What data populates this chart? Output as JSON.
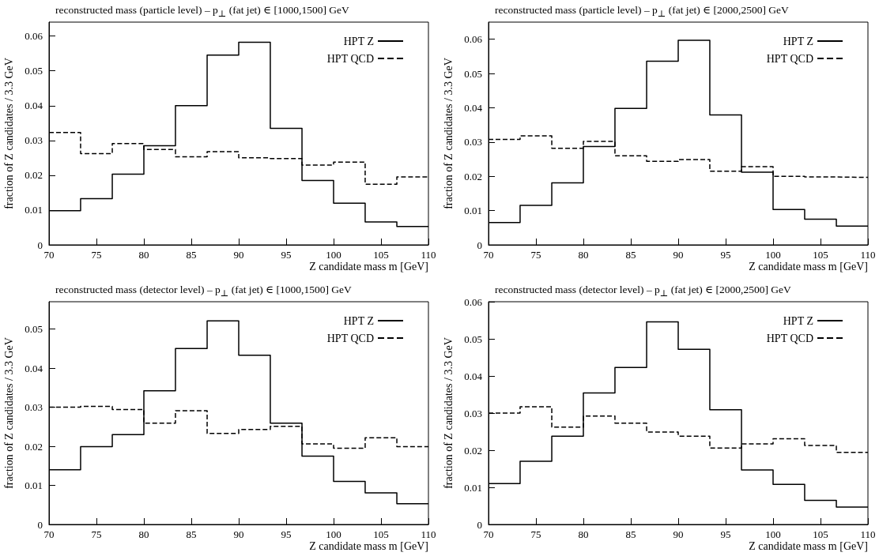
{
  "chart_data": [
    {
      "type": "histogram",
      "title": "reconstructed mass (particle level) – p$_{⊥}$ (fat jet) ∈ [1000,1500] GeV",
      "xlabel": "Z candidate mass m [GeV]",
      "ylabel": "fraction of Z candidates / 3.3 GeV",
      "bins": [
        70,
        73.33,
        76.67,
        80,
        83.33,
        86.67,
        90,
        93.33,
        96.67,
        100,
        103.33,
        106.67,
        110
      ],
      "xlim": [
        70,
        110
      ],
      "xticks": [
        70,
        75,
        80,
        85,
        90,
        95,
        100,
        105,
        110
      ],
      "ylim": [
        0,
        0.064
      ],
      "yticks": [
        0,
        0.01,
        0.02,
        0.03,
        0.04,
        0.05,
        0.06
      ],
      "legend": "top right",
      "grid": false,
      "series": [
        {
          "name": "HPT Z",
          "color": "#000000",
          "line_style": "solid",
          "values": [
            0.0098,
            0.0133,
            0.0203,
            0.0285,
            0.04,
            0.0545,
            0.0582,
            0.0335,
            0.0185,
            0.012,
            0.0066,
            0.0053
          ]
        },
        {
          "name": "HPT QCD",
          "color": "#000000",
          "line_style": "dashed",
          "values": [
            0.0323,
            0.0262,
            0.0291,
            0.0274,
            0.0253,
            0.0268,
            0.025,
            0.0248,
            0.0229,
            0.0238,
            0.0174,
            0.0195
          ]
        }
      ]
    },
    {
      "type": "histogram",
      "title": "reconstructed mass (particle level) – p$_{⊥}$ (fat jet) ∈ [2000,2500] GeV",
      "xlabel": "Z candidate mass m [GeV]",
      "ylabel": "fraction of Z candidates / 3.3 GeV",
      "bins": [
        70,
        73.33,
        76.67,
        80,
        83.33,
        86.67,
        90,
        93.33,
        96.67,
        100,
        103.33,
        106.67,
        110
      ],
      "xlim": [
        70,
        110
      ],
      "xticks": [
        70,
        75,
        80,
        85,
        90,
        95,
        100,
        105,
        110
      ],
      "ylim": [
        0,
        0.065
      ],
      "yticks": [
        0,
        0.01,
        0.02,
        0.03,
        0.04,
        0.05,
        0.06
      ],
      "legend": "top right",
      "grid": false,
      "series": [
        {
          "name": "HPT Z",
          "color": "#000000",
          "line_style": "solid",
          "values": [
            0.0065,
            0.0115,
            0.0181,
            0.0287,
            0.0398,
            0.0536,
            0.0597,
            0.0379,
            0.0212,
            0.0103,
            0.0075,
            0.0055
          ]
        },
        {
          "name": "HPT QCD",
          "color": "#000000",
          "line_style": "dashed",
          "values": [
            0.0308,
            0.0318,
            0.0282,
            0.0302,
            0.026,
            0.0244,
            0.0249,
            0.0215,
            0.0228,
            0.02,
            0.0198,
            0.0197
          ]
        }
      ]
    },
    {
      "type": "histogram",
      "title": "reconstructed mass (detector level) – p$_{⊥}$ (fat jet) ∈ [1000,1500] GeV",
      "xlabel": "Z candidate mass m [GeV]",
      "ylabel": "fraction of Z candidates / 3.3 GeV",
      "bins": [
        70,
        73.33,
        76.67,
        80,
        83.33,
        86.67,
        90,
        93.33,
        96.67,
        100,
        103.33,
        106.67,
        110
      ],
      "xlim": [
        70,
        110
      ],
      "xticks": [
        70,
        75,
        80,
        85,
        90,
        95,
        100,
        105,
        110
      ],
      "ylim": [
        0,
        0.057
      ],
      "yticks": [
        0,
        0.01,
        0.02,
        0.03,
        0.04,
        0.05
      ],
      "legend": "top right",
      "grid": false,
      "series": [
        {
          "name": "HPT Z",
          "color": "#000000",
          "line_style": "solid",
          "values": [
            0.014,
            0.0199,
            0.023,
            0.0342,
            0.045,
            0.0521,
            0.0433,
            0.0259,
            0.0175,
            0.011,
            0.0081,
            0.0053
          ]
        },
        {
          "name": "HPT QCD",
          "color": "#000000",
          "line_style": "dashed",
          "values": [
            0.03,
            0.0302,
            0.0294,
            0.0259,
            0.0291,
            0.0233,
            0.0243,
            0.0251,
            0.0206,
            0.0195,
            0.0222,
            0.0199
          ]
        }
      ]
    },
    {
      "type": "histogram",
      "title": "reconstructed mass (detector level) – p$_{⊥}$ (fat jet) ∈ [2000,2500] GeV",
      "xlabel": "Z candidate mass m [GeV]",
      "ylabel": "fraction of Z candidates / 3.3 GeV",
      "bins": [
        70,
        73.33,
        76.67,
        80,
        83.33,
        86.67,
        90,
        93.33,
        96.67,
        100,
        103.33,
        106.67,
        110
      ],
      "xlim": [
        70,
        110
      ],
      "xticks": [
        70,
        75,
        80,
        85,
        90,
        95,
        100,
        105,
        110
      ],
      "ylim": [
        0,
        0.06
      ],
      "yticks": [
        0,
        0.01,
        0.02,
        0.03,
        0.04,
        0.05,
        0.06
      ],
      "legend": "top right",
      "grid": false,
      "series": [
        {
          "name": "HPT Z",
          "color": "#000000",
          "line_style": "solid",
          "values": [
            0.011,
            0.017,
            0.0238,
            0.0354,
            0.0423,
            0.0546,
            0.0472,
            0.0309,
            0.0147,
            0.0108,
            0.0065,
            0.0047
          ]
        },
        {
          "name": "HPT QCD",
          "color": "#000000",
          "line_style": "dashed",
          "values": [
            0.03,
            0.0317,
            0.0262,
            0.0292,
            0.0273,
            0.0249,
            0.0238,
            0.0206,
            0.0217,
            0.0231,
            0.0213,
            0.0194
          ]
        }
      ]
    }
  ]
}
